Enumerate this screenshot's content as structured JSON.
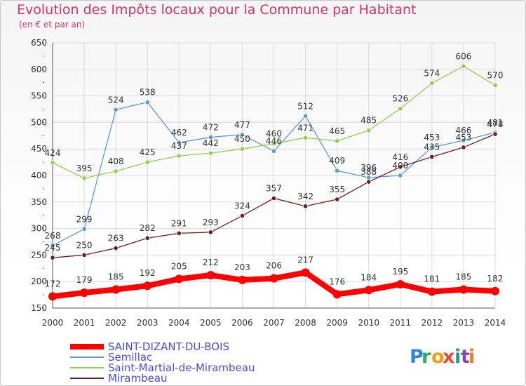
{
  "chart_data": {
    "type": "line",
    "title": "Evolution des Impôts locaux pour la Commune par Habitant",
    "subtitle": "(en € et par an)",
    "x": [
      "2000",
      "2001",
      "2002",
      "2003",
      "2004",
      "2005",
      "2006",
      "2007",
      "2008",
      "2009",
      "2010",
      "2011",
      "2012",
      "2013",
      "2014"
    ],
    "ylim": [
      150,
      650
    ],
    "yticks": [
      150,
      200,
      250,
      300,
      350,
      400,
      450,
      500,
      550,
      600,
      650
    ],
    "grid": true,
    "legend_position": "bottom-left",
    "series": [
      {
        "name": "SAINT-DIZANT-DU-BOIS",
        "color": "#ff0000",
        "values": [
          172,
          179,
          185,
          192,
          205,
          212,
          203,
          206,
          217,
          176,
          184,
          195,
          181,
          185,
          182
        ]
      },
      {
        "name": "Semillac",
        "color": "#5b9bd5",
        "values": [
          268,
          299,
          524,
          538,
          462,
          472,
          477,
          446,
          512,
          409,
          396,
          400,
          453,
          466,
          481
        ]
      },
      {
        "name": "Saint-Martial-de-Mirambeau",
        "color": "#8fd14f",
        "values": [
          424,
          395,
          408,
          425,
          437,
          442,
          450,
          460,
          471,
          465,
          485,
          526,
          574,
          606,
          570
        ]
      },
      {
        "name": "Mirambeau",
        "color": "#6b1e1e",
        "values": [
          245,
          250,
          263,
          282,
          291,
          293,
          324,
          357,
          342,
          355,
          388,
          416,
          435,
          453,
          478
        ]
      }
    ]
  },
  "branding": {
    "logo_text": "Proxiti",
    "logo_colors": [
      "#2e86de",
      "#27ae60",
      "#f39c12",
      "#e74c3c",
      "#16a085",
      "#8e44ad",
      "#e67e22"
    ]
  }
}
